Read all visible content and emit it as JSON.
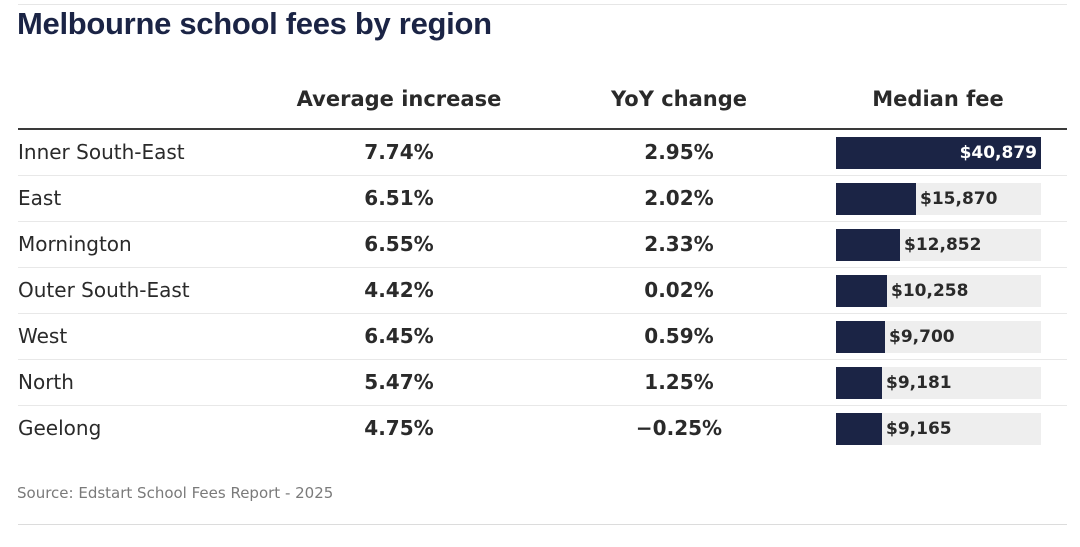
{
  "title": "Melbourne school fees by region",
  "source": "Source: Edstart School Fees Report - 2025",
  "colors": {
    "bar": "#1b2445",
    "track": "#eeeeee",
    "title": "#1b2445"
  },
  "chart_data": {
    "type": "table",
    "title": "Melbourne school fees by region",
    "columns": [
      "Average increase",
      "YoY change",
      "Median fee"
    ],
    "rows": [
      {
        "region": "Inner South-East",
        "avg_increase": "7.74%",
        "yoy_change": "2.95%",
        "median_fee_label": "$40,879",
        "median_fee": 40879
      },
      {
        "region": "East",
        "avg_increase": "6.51%",
        "yoy_change": "2.02%",
        "median_fee_label": "$15,870",
        "median_fee": 15870
      },
      {
        "region": "Mornington",
        "avg_increase": "6.55%",
        "yoy_change": "2.33%",
        "median_fee_label": "$12,852",
        "median_fee": 12852
      },
      {
        "region": "Outer South-East",
        "avg_increase": "4.42%",
        "yoy_change": "0.02%",
        "median_fee_label": "$10,258",
        "median_fee": 10258
      },
      {
        "region": "West",
        "avg_increase": "6.45%",
        "yoy_change": "0.59%",
        "median_fee_label": "$9,700",
        "median_fee": 9700
      },
      {
        "region": "North",
        "avg_increase": "5.47%",
        "yoy_change": "1.25%",
        "median_fee_label": "$9,181",
        "median_fee": 9181
      },
      {
        "region": "Geelong",
        "avg_increase": "4.75%",
        "yoy_change": "−0.25%",
        "median_fee_label": "$9,165",
        "median_fee": 9165
      }
    ]
  }
}
